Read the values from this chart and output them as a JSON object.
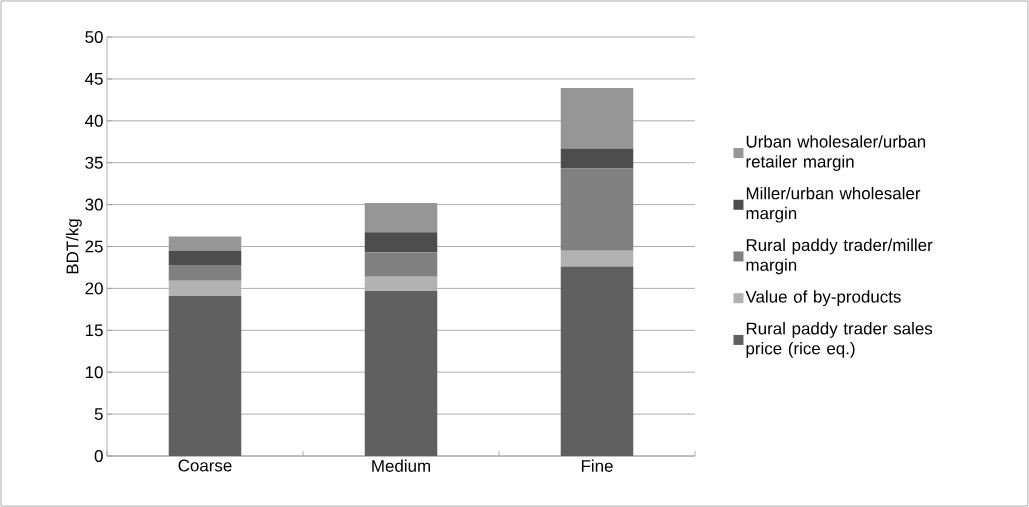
{
  "chart_data": {
    "type": "bar",
    "stacked": true,
    "ylabel": "BDT/kg",
    "categories": [
      "Coarse",
      "Medium",
      "Fine"
    ],
    "series": [
      {
        "name": "Rural paddy trader sales price (rice eq.)",
        "color": "#606060",
        "values": [
          19.1,
          19.7,
          22.6
        ]
      },
      {
        "name": "Value of by-products",
        "color": "#b2b2b2",
        "values": [
          1.8,
          1.7,
          1.9
        ]
      },
      {
        "name": "Rural paddy trader/miller margin",
        "color": "#808080",
        "values": [
          1.9,
          2.9,
          9.8
        ]
      },
      {
        "name": "Miller/urban wholesaler margin",
        "color": "#4d4d4d",
        "values": [
          1.7,
          2.4,
          2.4
        ]
      },
      {
        "name": "Urban wholesaler/urban retailer margin",
        "color": "#969696",
        "values": [
          1.7,
          3.5,
          7.2
        ]
      }
    ],
    "ylim": [
      0,
      50
    ],
    "yticks": [
      0,
      5,
      10,
      15,
      20,
      25,
      30,
      35,
      40,
      45,
      50
    ],
    "grid": "y",
    "legend": "right"
  }
}
